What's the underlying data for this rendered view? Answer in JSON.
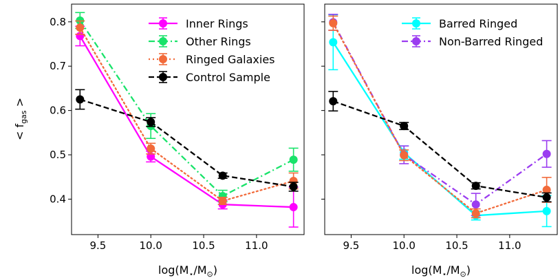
{
  "chart_data": [
    {
      "type": "line",
      "panel": "left",
      "xlabel": "log(M⋆/M⊙)",
      "ylabel": "< f_gas >",
      "xlim": [
        9.25,
        11.45
      ],
      "ylim": [
        0.32,
        0.84
      ],
      "xticks": [
        9.5,
        10.0,
        10.5,
        11.0
      ],
      "xtick_labels": [
        "9.5",
        "10.0",
        "10.5",
        "11.0"
      ],
      "yticks": [
        0.4,
        0.5,
        0.6,
        0.7,
        0.8
      ],
      "ytick_labels": [
        "0.4",
        "0.5",
        "0.6",
        "0.7",
        "0.8"
      ],
      "legend_position": "top-right",
      "series": [
        {
          "name": "Inner Rings",
          "color": "#ff00ff",
          "dash": "solid",
          "x": [
            9.33,
            10.0,
            10.68,
            11.35
          ],
          "y": [
            0.768,
            0.496,
            0.388,
            0.382
          ],
          "err": [
            0.022,
            0.012,
            0.01,
            0.045
          ]
        },
        {
          "name": "Other Rings",
          "color": "#19e36a",
          "dash": "dashdot",
          "x": [
            9.33,
            10.0,
            10.68,
            11.35
          ],
          "y": [
            0.803,
            0.565,
            0.407,
            0.489
          ],
          "err": [
            0.018,
            0.028,
            0.013,
            0.026
          ]
        },
        {
          "name": "Ringed Galaxies",
          "color": "#f26a3a",
          "dash": "dotted",
          "x": [
            9.33,
            10.0,
            10.68,
            11.35
          ],
          "y": [
            0.787,
            0.514,
            0.396,
            0.441
          ],
          "err": [
            0.015,
            0.012,
            0.008,
            0.018
          ]
        },
        {
          "name": "Control Sample",
          "color": "#000000",
          "dash": "dashed",
          "x": [
            9.33,
            10.0,
            10.68,
            11.35
          ],
          "y": [
            0.625,
            0.574,
            0.453,
            0.428
          ],
          "err": [
            0.022,
            0.01,
            0.006,
            0.01
          ]
        }
      ]
    },
    {
      "type": "line",
      "panel": "right",
      "xlabel": "log(M⋆/M⊙)",
      "ylabel": "",
      "xlim": [
        9.25,
        11.45
      ],
      "ylim": [
        0.32,
        0.84
      ],
      "xticks": [
        9.5,
        10.0,
        10.5,
        11.0
      ],
      "xtick_labels": [
        "9.5",
        "10.0",
        "10.5",
        "11.0"
      ],
      "yticks": [
        0.4,
        0.5,
        0.6,
        0.7,
        0.8
      ],
      "ytick_labels": [],
      "legend_position": "top-right",
      "series": [
        {
          "name": "Barred Ringed",
          "color": "#00ffff",
          "dash": "solid",
          "x": [
            9.33,
            10.0,
            10.68,
            11.35
          ],
          "y": [
            0.754,
            0.505,
            0.363,
            0.373
          ],
          "err": [
            0.062,
            0.015,
            0.01,
            0.035
          ]
        },
        {
          "name": "Non-Barred Ringed",
          "color": "#9b3cf0",
          "dash": "dashdot",
          "x": [
            9.33,
            10.0,
            10.68,
            11.35
          ],
          "y": [
            0.799,
            0.5,
            0.388,
            0.502
          ],
          "err": [
            0.018,
            0.02,
            0.025,
            0.03
          ]
        },
        {
          "name": "",
          "color": "#f26a3a",
          "dash": "dotted",
          "x": [
            9.33,
            10.0,
            10.68,
            11.35
          ],
          "y": [
            0.797,
            0.499,
            0.368,
            0.421
          ],
          "err": [
            0.016,
            0.012,
            0.01,
            0.028
          ]
        },
        {
          "name": "",
          "color": "#000000",
          "dash": "dashed",
          "x": [
            9.33,
            10.0,
            10.68,
            11.35
          ],
          "y": [
            0.621,
            0.565,
            0.43,
            0.404
          ],
          "err": [
            0.022,
            0.008,
            0.007,
            0.01
          ]
        }
      ]
    }
  ]
}
